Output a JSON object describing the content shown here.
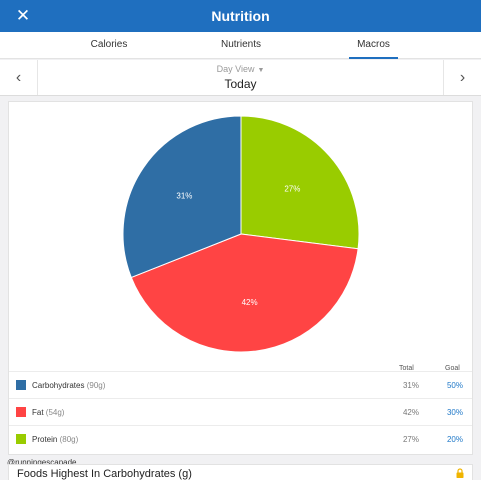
{
  "header": {
    "title": "Nutrition",
    "close_icon": "close-icon"
  },
  "tabs": [
    {
      "label": "Calories",
      "active": false
    },
    {
      "label": "Nutrients",
      "active": false
    },
    {
      "label": "Macros",
      "active": true
    }
  ],
  "day_nav": {
    "view_label": "Day View",
    "day_label": "Today",
    "prev_icon": "chevron-left-icon",
    "next_icon": "chevron-right-icon"
  },
  "chart_data": {
    "type": "pie",
    "slices": [
      {
        "name": "Carbohydrates",
        "value": 31,
        "label": "31%",
        "color": "#2f6ea5"
      },
      {
        "name": "Fat",
        "value": 42,
        "label": "42%",
        "color": "#ff4444"
      },
      {
        "name": "Protein",
        "value": 27,
        "label": "27%",
        "color": "#99cc00"
      }
    ]
  },
  "table": {
    "col_total": "Total",
    "col_goal": "Goal",
    "rows": [
      {
        "name": "Carbohydrates",
        "amount": "(90g)",
        "total": "31%",
        "goal": "50%",
        "color": "#2f6ea5"
      },
      {
        "name": "Fat",
        "amount": "(54g)",
        "total": "42%",
        "goal": "30%",
        "color": "#ff4444"
      },
      {
        "name": "Protein",
        "amount": "(80g)",
        "total": "27%",
        "goal": "20%",
        "color": "#99cc00"
      }
    ]
  },
  "watermark": "@runningescapade",
  "foods_section": {
    "title": "Foods Highest In Carbohydrates (g)",
    "lock_icon": "lock-icon",
    "lock_color": "#f0b400"
  }
}
